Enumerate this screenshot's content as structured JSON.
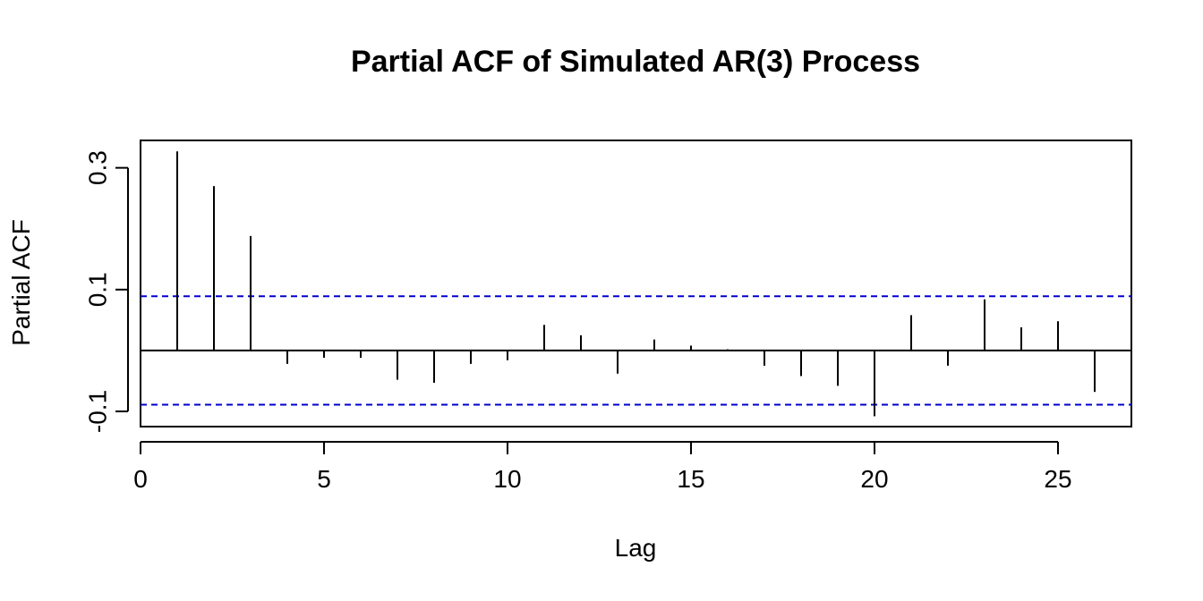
{
  "chart_data": {
    "type": "bar",
    "title": "Partial ACF of Simulated AR(3) Process",
    "xlabel": "Lag",
    "ylabel": "Partial ACF",
    "x_ticks": [
      0,
      5,
      10,
      15,
      20,
      25
    ],
    "x_tick_labels": [
      "0",
      "5",
      "10",
      "15",
      "20",
      "25"
    ],
    "y_ticks": [
      -0.1,
      0.1,
      0.3
    ],
    "y_tick_labels": [
      "-0.1",
      "0.1",
      "0.3"
    ],
    "xlim": [
      0,
      27
    ],
    "ylim": [
      -0.125,
      0.345
    ],
    "lags": [
      1,
      2,
      3,
      4,
      5,
      6,
      7,
      8,
      9,
      10,
      11,
      12,
      13,
      14,
      15,
      16,
      17,
      18,
      19,
      20,
      21,
      22,
      23,
      24,
      25,
      26
    ],
    "values": [
      0.327,
      0.27,
      0.188,
      -0.022,
      -0.012,
      -0.012,
      -0.048,
      -0.053,
      -0.022,
      -0.016,
      0.042,
      0.025,
      -0.038,
      0.018,
      0.008,
      0.002,
      -0.025,
      -0.042,
      -0.058,
      -0.108,
      0.058,
      -0.025,
      0.084,
      0.038,
      0.048,
      -0.068
    ],
    "confidence_bound": 0.089,
    "confidence_line_color": "#0000cd",
    "line_color": "#000000",
    "grid": false,
    "legend": "none"
  }
}
